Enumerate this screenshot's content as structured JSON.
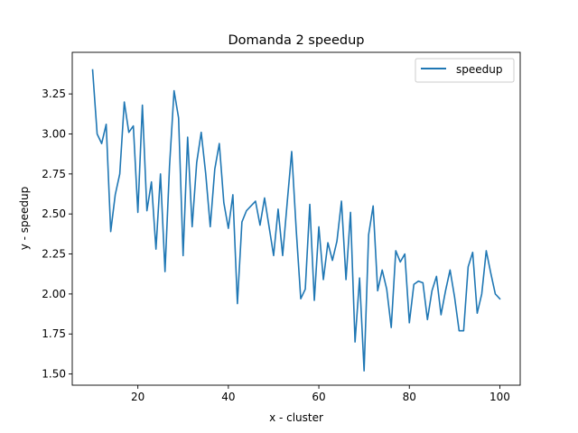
{
  "chart_data": {
    "type": "line",
    "title": "Domanda 2 speedup",
    "xlabel": "x - cluster",
    "ylabel": "y - speedup",
    "xlim": [
      5.5,
      104.5
    ],
    "ylim": [
      1.43,
      3.51
    ],
    "xticks": [
      20,
      40,
      60,
      80,
      100
    ],
    "yticks": [
      1.5,
      1.75,
      2.0,
      2.25,
      2.5,
      2.75,
      3.0,
      3.25
    ],
    "ytick_labels": [
      "1.50",
      "1.75",
      "2.00",
      "2.25",
      "2.50",
      "2.75",
      "3.00",
      "3.25"
    ],
    "grid": false,
    "legend_position": "top-right",
    "colors": {
      "series": "#1f77b4",
      "axes": "#000000",
      "background": "#ffffff",
      "legend_edge": "#cccccc"
    },
    "series": [
      {
        "name": "speedup",
        "x": [
          10,
          11,
          12,
          13,
          14,
          15,
          16,
          17,
          18,
          19,
          20,
          21,
          22,
          23,
          24,
          25,
          26,
          27,
          28,
          29,
          30,
          31,
          32,
          33,
          34,
          35,
          36,
          37,
          38,
          39,
          40,
          41,
          42,
          43,
          44,
          45,
          46,
          47,
          48,
          49,
          50,
          51,
          52,
          53,
          54,
          55,
          56,
          57,
          58,
          59,
          60,
          61,
          62,
          63,
          64,
          65,
          66,
          67,
          68,
          69,
          70,
          71,
          72,
          73,
          74,
          75,
          76,
          77,
          78,
          79,
          80,
          81,
          82,
          83,
          84,
          85,
          86,
          87,
          88,
          89,
          90,
          91,
          92,
          93,
          94,
          95,
          96,
          97,
          98,
          99,
          100
        ],
        "values": [
          3.4,
          3.0,
          2.94,
          3.06,
          2.39,
          2.62,
          2.75,
          3.2,
          3.01,
          3.05,
          2.51,
          3.18,
          2.52,
          2.7,
          2.28,
          2.75,
          2.14,
          2.8,
          3.27,
          3.1,
          2.24,
          2.98,
          2.42,
          2.82,
          3.01,
          2.75,
          2.42,
          2.78,
          2.94,
          2.57,
          2.41,
          2.62,
          1.94,
          2.45,
          2.52,
          2.55,
          2.58,
          2.43,
          2.6,
          2.42,
          2.24,
          2.53,
          2.24,
          2.57,
          2.89,
          2.4,
          1.97,
          2.03,
          2.56,
          1.96,
          2.42,
          2.09,
          2.32,
          2.21,
          2.33,
          2.58,
          2.09,
          2.51,
          1.7,
          2.1,
          1.52,
          2.37,
          2.55,
          2.02,
          2.15,
          2.03,
          1.79,
          2.27,
          2.2,
          2.25,
          1.82,
          2.06,
          2.08,
          2.07,
          1.84,
          2.02,
          2.11,
          1.87,
          2.02,
          2.15,
          1.98,
          1.77,
          1.77,
          2.17,
          2.26,
          1.88,
          2.0,
          2.27,
          2.13,
          2.0,
          1.97
        ]
      }
    ]
  }
}
